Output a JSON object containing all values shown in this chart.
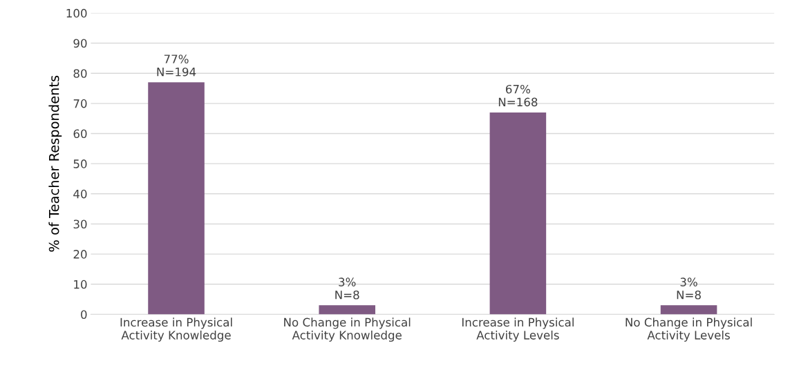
{
  "chart_data": {
    "type": "bar",
    "ylabel": "% of Teacher Respondents",
    "categories": [
      "Increase in Physical\nActivity Knowledge",
      "No Change in Physical\nActivity Knowledge",
      "Increase in Physical\nActivity Levels",
      "No Change in Physical\nActivity Levels"
    ],
    "values": [
      77,
      3,
      67,
      3
    ],
    "value_labels": [
      "77%\nN=194",
      "3%\nN=8",
      "67%\nN=168",
      "3%\nN=8"
    ],
    "color": "#7f5a83",
    "ylim": [
      0,
      100
    ],
    "yticks": [
      0,
      10,
      20,
      30,
      40,
      50,
      60,
      70,
      80,
      90,
      100
    ],
    "grid": "y"
  }
}
